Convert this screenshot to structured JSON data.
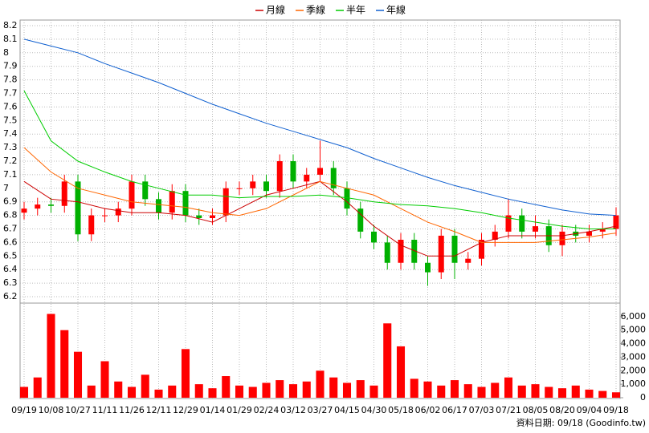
{
  "chart_data": {
    "type": "candlestick",
    "legend": "top",
    "grid": true,
    "xlim": [
      0,
      44
    ],
    "xticks": [
      {
        "value": 0,
        "label": "09/19"
      },
      {
        "value": 2,
        "label": "10/08"
      },
      {
        "value": 4,
        "label": "10/27"
      },
      {
        "value": 6,
        "label": "11/11"
      },
      {
        "value": 8,
        "label": "11/26"
      },
      {
        "value": 10,
        "label": "12/11"
      },
      {
        "value": 12,
        "label": "12/29"
      },
      {
        "value": 14,
        "label": "01/14"
      },
      {
        "value": 16,
        "label": "01/29"
      },
      {
        "value": 18,
        "label": "02/24"
      },
      {
        "value": 20,
        "label": "03/12"
      },
      {
        "value": 22,
        "label": "03/27"
      },
      {
        "value": 24,
        "label": "04/15"
      },
      {
        "value": 26,
        "label": "04/30"
      },
      {
        "value": 28,
        "label": "05/18"
      },
      {
        "value": 30,
        "label": "06/02"
      },
      {
        "value": 32,
        "label": "06/17"
      },
      {
        "value": 34,
        "label": "07/03"
      },
      {
        "value": 36,
        "label": "07/21"
      },
      {
        "value": 38,
        "label": "08/05"
      },
      {
        "value": 40,
        "label": "08/20"
      },
      {
        "value": 42,
        "label": "09/04"
      },
      {
        "value": 44,
        "label": "09/18"
      }
    ],
    "ylim": [
      6.2,
      8.2
    ],
    "yticks": [
      6.2,
      6.3,
      6.4,
      6.5,
      6.6,
      6.7,
      6.8,
      6.9,
      7,
      7.1,
      7.2,
      7.3,
      7.4,
      7.5,
      7.6,
      7.7,
      7.8,
      7.9,
      8,
      8.1,
      8.2
    ],
    "up_color": "#ff0000",
    "down_color": "#00b000",
    "open": [
      6.82,
      6.85,
      6.88,
      6.87,
      7.05,
      6.66,
      6.8,
      6.8,
      6.85,
      7.05,
      6.92,
      6.82,
      6.98,
      6.8,
      6.78,
      6.8,
      7.0,
      7.0,
      7.05,
      6.98,
      7.2,
      7.05,
      7.1,
      7.15,
      7.0,
      6.85,
      6.68,
      6.6,
      6.45,
      6.62,
      6.45,
      6.38,
      6.65,
      6.45,
      6.48,
      6.62,
      6.68,
      6.8,
      6.68,
      6.72,
      6.58,
      6.68,
      6.65,
      6.68,
      6.7
    ],
    "high": [
      6.9,
      6.93,
      6.93,
      7.1,
      7.1,
      6.85,
      6.85,
      6.9,
      7.1,
      7.1,
      6.97,
      7.03,
      7.03,
      6.85,
      6.85,
      7.05,
      7.05,
      7.1,
      7.1,
      7.25,
      7.25,
      7.15,
      7.35,
      7.2,
      7.05,
      6.9,
      6.73,
      6.65,
      6.67,
      6.67,
      6.5,
      6.7,
      6.7,
      6.53,
      6.67,
      6.73,
      6.92,
      6.85,
      6.8,
      6.77,
      6.73,
      6.73,
      6.73,
      6.75,
      6.86
    ],
    "low": [
      6.77,
      6.8,
      6.82,
      6.82,
      6.61,
      6.61,
      6.75,
      6.75,
      6.8,
      6.87,
      6.77,
      6.77,
      6.75,
      6.73,
      6.73,
      6.75,
      6.95,
      6.95,
      6.93,
      6.93,
      7.0,
      7.0,
      7.05,
      6.95,
      6.8,
      6.63,
      6.55,
      6.4,
      6.4,
      6.4,
      6.28,
      6.33,
      6.33,
      6.4,
      6.43,
      6.57,
      6.63,
      6.63,
      6.63,
      6.53,
      6.5,
      6.6,
      6.6,
      6.63,
      6.65
    ],
    "close": [
      6.85,
      6.88,
      6.87,
      7.05,
      6.66,
      6.8,
      6.8,
      6.85,
      7.05,
      6.92,
      6.82,
      6.98,
      6.8,
      6.78,
      6.8,
      7.0,
      7.0,
      7.05,
      6.98,
      7.2,
      7.05,
      7.1,
      7.15,
      7.0,
      6.85,
      6.68,
      6.6,
      6.45,
      6.62,
      6.45,
      6.38,
      6.65,
      6.45,
      6.48,
      6.62,
      6.68,
      6.8,
      6.68,
      6.72,
      6.58,
      6.68,
      6.65,
      6.68,
      6.7,
      6.8
    ],
    "series": [
      {
        "name": "月線",
        "color": "#cc0000",
        "x": [
          0,
          2,
          4,
          6,
          8,
          10,
          12,
          14,
          16,
          18,
          20,
          22,
          24,
          26,
          28,
          30,
          32,
          34,
          36,
          38,
          40,
          42,
          44
        ],
        "values": [
          7.05,
          6.92,
          6.9,
          6.85,
          6.82,
          6.82,
          6.8,
          6.75,
          6.85,
          6.95,
          7.0,
          7.05,
          6.9,
          6.72,
          6.58,
          6.5,
          6.5,
          6.6,
          6.65,
          6.65,
          6.65,
          6.68,
          6.72
        ]
      },
      {
        "name": "季線",
        "color": "#ff6600",
        "x": [
          0,
          2,
          4,
          6,
          8,
          10,
          12,
          14,
          16,
          18,
          20,
          22,
          24,
          26,
          28,
          30,
          32,
          34,
          36,
          38,
          40,
          42,
          44
        ],
        "values": [
          7.3,
          7.12,
          7.0,
          6.95,
          6.9,
          6.88,
          6.86,
          6.82,
          6.8,
          6.85,
          6.95,
          7.05,
          7.0,
          6.95,
          6.85,
          6.75,
          6.68,
          6.6,
          6.6,
          6.6,
          6.62,
          6.64,
          6.67
        ]
      },
      {
        "name": "半年",
        "color": "#00cc00",
        "x": [
          0,
          2,
          4,
          6,
          8,
          10,
          12,
          14,
          16,
          18,
          20,
          22,
          24,
          26,
          28,
          30,
          32,
          34,
          36,
          38,
          40,
          42,
          44
        ],
        "values": [
          7.72,
          7.35,
          7.2,
          7.12,
          7.05,
          7.0,
          6.95,
          6.95,
          6.93,
          6.94,
          6.94,
          6.95,
          6.93,
          6.9,
          6.88,
          6.87,
          6.85,
          6.82,
          6.78,
          6.75,
          6.72,
          6.7,
          6.7
        ]
      },
      {
        "name": "年線",
        "color": "#1060d0",
        "x": [
          0,
          2,
          4,
          6,
          8,
          10,
          12,
          14,
          16,
          18,
          20,
          22,
          24,
          26,
          28,
          30,
          32,
          34,
          36,
          38,
          40,
          42,
          44
        ],
        "values": [
          8.1,
          8.05,
          8.0,
          7.92,
          7.85,
          7.78,
          7.7,
          7.62,
          7.55,
          7.48,
          7.42,
          7.36,
          7.3,
          7.22,
          7.15,
          7.08,
          7.02,
          6.97,
          6.92,
          6.88,
          6.84,
          6.81,
          6.8
        ]
      }
    ],
    "volume": {
      "type": "bar",
      "color": "#ff0000",
      "ylim": [
        0,
        7000
      ],
      "yticks": [
        0,
        {
          "value": 1000,
          "label": "1,000"
        },
        {
          "value": 2000,
          "label": "2,000"
        },
        {
          "value": 3000,
          "label": "3,000"
        },
        {
          "value": 4000,
          "label": "4,000"
        },
        {
          "value": 5000,
          "label": "5,000"
        },
        {
          "value": 6000,
          "label": "6,000"
        }
      ],
      "values": [
        800,
        1500,
        6200,
        5000,
        3400,
        900,
        2700,
        1200,
        800,
        1700,
        600,
        900,
        3600,
        1000,
        700,
        1600,
        900,
        800,
        1100,
        1300,
        1000,
        1200,
        2000,
        1500,
        1100,
        1300,
        900,
        5500,
        3800,
        1400,
        1200,
        900,
        1300,
        1000,
        800,
        1100,
        1500,
        900,
        1000,
        800,
        700,
        900,
        600,
        500,
        400
      ]
    },
    "footnote": "資料日期: 09/18 (Goodinfo.tw)"
  }
}
